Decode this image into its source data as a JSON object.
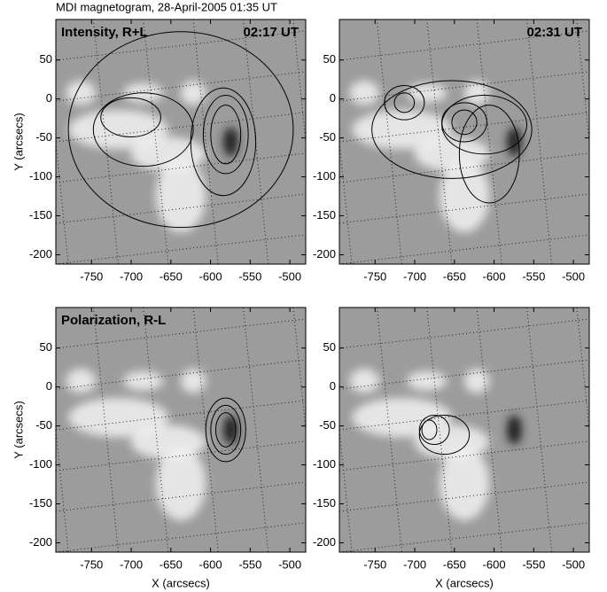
{
  "title": "MDI magnetogram, 28-April-2005 01:35 UT",
  "chart_data": [
    {
      "type": "image",
      "label": "Intensity, R+L",
      "time": "02:17 UT",
      "ylabel": "Y (arcsecs)",
      "xlim": [
        -795,
        -480
      ],
      "ylim": [
        -212,
        102
      ],
      "xticks": [
        -750,
        -700,
        -650,
        -600,
        -550,
        -500
      ],
      "yticks": [
        50,
        0,
        -50,
        -100,
        -150,
        -200
      ]
    },
    {
      "type": "image",
      "time": "02:31 UT",
      "xlim": [
        -795,
        -480
      ],
      "ylim": [
        -212,
        102
      ],
      "xticks": [
        -750,
        -700,
        -650,
        -600,
        -550,
        -500
      ],
      "yticks": [
        50,
        0,
        -50,
        -100,
        -150,
        -200
      ]
    },
    {
      "type": "image",
      "label": "Polarization, R-L",
      "ylabel": "Y (arcsecs)",
      "xlabel": "X (arcsecs)",
      "xlim": [
        -795,
        -480
      ],
      "ylim": [
        -212,
        102
      ],
      "xticks": [
        -750,
        -700,
        -650,
        -600,
        -550,
        -500
      ],
      "yticks": [
        50,
        0,
        -50,
        -100,
        -150,
        -200
      ]
    },
    {
      "type": "image",
      "xlabel": "X (arcsecs)",
      "xlim": [
        -795,
        -480
      ],
      "ylim": [
        -212,
        102
      ],
      "xticks": [
        -750,
        -700,
        -650,
        -600,
        -550,
        -500
      ],
      "yticks": [
        50,
        0,
        -50,
        -100,
        -150,
        -200
      ]
    }
  ]
}
